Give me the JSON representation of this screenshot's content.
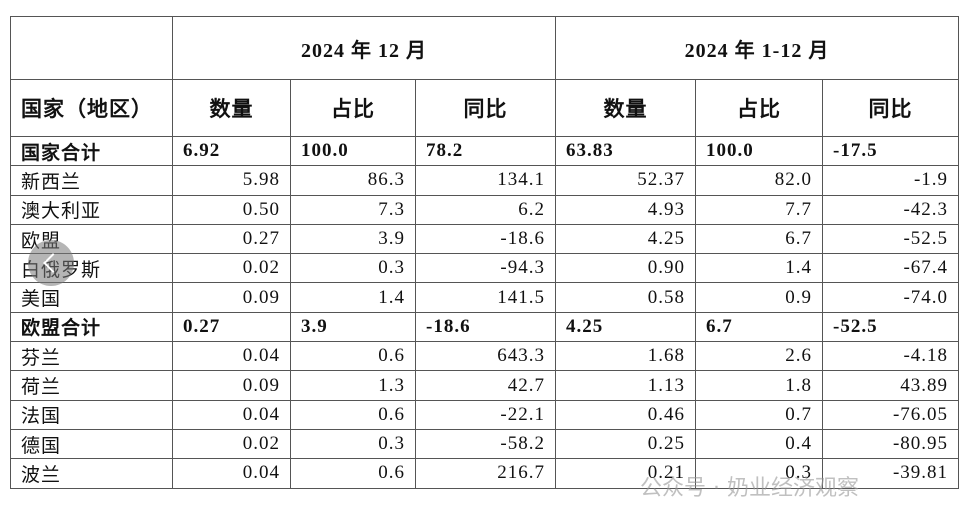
{
  "table": {
    "period_headers": [
      "2024 年 12 月",
      "2024 年 1-12 月"
    ],
    "column_headers": [
      "国家（地区）",
      "数量",
      "占比",
      "同比",
      "数量",
      "占比",
      "同比"
    ],
    "rows": [
      [
        "国家合计",
        "6.92",
        "100.0",
        "78.2",
        "63.83",
        "100.0",
        "-17.5"
      ],
      [
        "新西兰",
        "5.98",
        "86.3",
        "134.1",
        "52.37",
        "82.0",
        "-1.9"
      ],
      [
        "澳大利亚",
        "0.50",
        "7.3",
        "6.2",
        "4.93",
        "7.7",
        "-42.3"
      ],
      [
        "欧盟",
        "0.27",
        "3.9",
        "-18.6",
        "4.25",
        "6.7",
        "-52.5"
      ],
      [
        "白俄罗斯",
        "0.02",
        "0.3",
        "-94.3",
        "0.90",
        "1.4",
        "-67.4"
      ],
      [
        "美国",
        "0.09",
        "1.4",
        "141.5",
        "0.58",
        "0.9",
        "-74.0"
      ],
      [
        "欧盟合计",
        "0.27",
        "3.9",
        "-18.6",
        "4.25",
        "6.7",
        "-52.5"
      ],
      [
        "芬兰",
        "0.04",
        "0.6",
        "643.3",
        "1.68",
        "2.6",
        "-4.18"
      ],
      [
        "荷兰",
        "0.09",
        "1.3",
        "42.7",
        "1.13",
        "1.8",
        "43.89"
      ],
      [
        "法国",
        "0.04",
        "0.6",
        "-22.1",
        "0.46",
        "0.7",
        "-76.05"
      ],
      [
        "德国",
        "0.02",
        "0.3",
        "-58.2",
        "0.25",
        "0.4",
        "-80.95"
      ],
      [
        "波兰",
        "0.04",
        "0.6",
        "216.7",
        "0.21",
        "0.3",
        "-39.81"
      ]
    ]
  },
  "watermark": "公众号 · 奶业经济观察"
}
